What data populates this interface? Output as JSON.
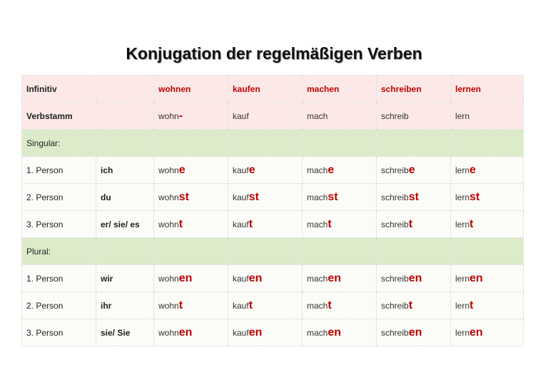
{
  "title": "Konjugation der regelmäßigen Verben",
  "header": {
    "infinitiv_label": "Infinitiv",
    "verbs": [
      "wohnen",
      "kaufen",
      "machen",
      "schreiben",
      "lernen"
    ],
    "verbstamm_label": "Verbstamm",
    "stems": [
      {
        "stem": "wohn",
        "mark": "-"
      },
      {
        "stem": "kauf",
        "mark": ""
      },
      {
        "stem": "mach",
        "mark": ""
      },
      {
        "stem": "schreib",
        "mark": ""
      },
      {
        "stem": "lern",
        "mark": ""
      }
    ]
  },
  "singular": {
    "label": "Singular:",
    "rows": [
      {
        "person": "1. Person",
        "pronoun": "ich",
        "forms": [
          {
            "stem": "wohn",
            "end": "e"
          },
          {
            "stem": "kauf",
            "end": "e"
          },
          {
            "stem": "mach",
            "end": "e"
          },
          {
            "stem": "schreib",
            "end": "e"
          },
          {
            "stem": "lern",
            "end": "e"
          }
        ]
      },
      {
        "person": "2. Person",
        "pronoun": "du",
        "forms": [
          {
            "stem": "wohn",
            "end": "st"
          },
          {
            "stem": "kauf",
            "end": "st"
          },
          {
            "stem": "mach",
            "end": "st"
          },
          {
            "stem": "schreib",
            "end": "st"
          },
          {
            "stem": "lern",
            "end": "st"
          }
        ]
      },
      {
        "person": "3. Person",
        "pronoun": "er/ sie/ es",
        "forms": [
          {
            "stem": "wohn",
            "end": "t"
          },
          {
            "stem": "kauf",
            "end": "t"
          },
          {
            "stem": "mach",
            "end": "t"
          },
          {
            "stem": "schreib",
            "end": "t"
          },
          {
            "stem": "lern",
            "end": "t"
          }
        ]
      }
    ]
  },
  "plural": {
    "label": "Plural:",
    "rows": [
      {
        "person": "1. Person",
        "pronoun": "wir",
        "forms": [
          {
            "stem": "wohn",
            "end": "en"
          },
          {
            "stem": "kauf",
            "end": "en"
          },
          {
            "stem": "mach",
            "end": "en"
          },
          {
            "stem": "schreib",
            "end": "en"
          },
          {
            "stem": "lern",
            "end": "en"
          }
        ]
      },
      {
        "person": "2. Person",
        "pronoun": "ihr",
        "forms": [
          {
            "stem": "wohn",
            "end": "t"
          },
          {
            "stem": "kauf",
            "end": "t"
          },
          {
            "stem": "mach",
            "end": "t"
          },
          {
            "stem": "schreib",
            "end": "t"
          },
          {
            "stem": "lern",
            "end": "t"
          }
        ]
      },
      {
        "person": "3. Person",
        "pronoun": "sie/ Sie",
        "forms": [
          {
            "stem": "wohn",
            "end": "en"
          },
          {
            "stem": "kauf",
            "end": "en"
          },
          {
            "stem": "mach",
            "end": "en"
          },
          {
            "stem": "schreib",
            "end": "en"
          },
          {
            "stem": "lern",
            "end": "en"
          }
        ]
      }
    ]
  },
  "colors": {
    "ending": "#c00000",
    "header_bg": "#fce9e7",
    "section_bg": "#dcebc9"
  }
}
